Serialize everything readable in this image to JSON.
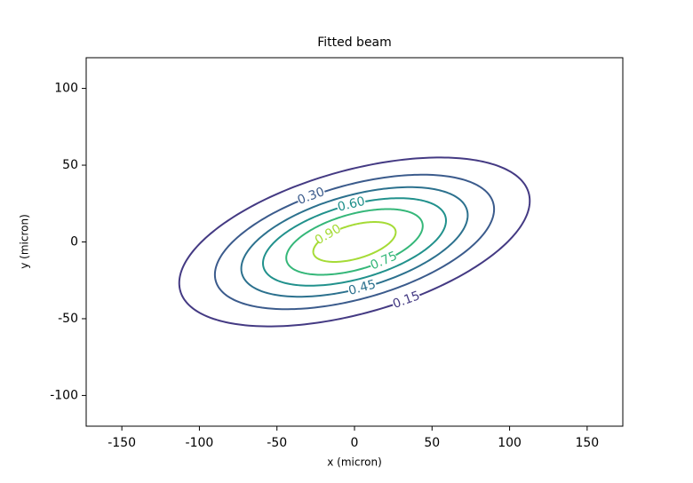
{
  "chart_data": {
    "type": "contour",
    "title": "Fitted beam",
    "x_label": "x (micron)",
    "y_label": "y (micron)",
    "xlim": [
      -173,
      173
    ],
    "xticks": [
      -150,
      -100,
      -50,
      0,
      50,
      100,
      150
    ],
    "ylim": [
      -120,
      120
    ],
    "yticks": [
      -100,
      -50,
      0,
      50,
      100
    ],
    "center": [
      0,
      0
    ],
    "correlation": 0.487,
    "series": [
      {
        "name": "0.15",
        "color": "#443a83",
        "x_half": 113,
        "y_half": 55
      },
      {
        "name": "0.30",
        "color": "#3b5b8c",
        "x_half": 90,
        "y_half": 43.8
      },
      {
        "name": "0.45",
        "color": "#2c718e",
        "x_half": 73,
        "y_half": 35.7
      },
      {
        "name": "0.60",
        "color": "#21918c",
        "x_half": 59,
        "y_half": 28.5
      },
      {
        "name": "0.75",
        "color": "#35b779",
        "x_half": 44,
        "y_half": 21.4
      },
      {
        "name": "0.90",
        "color": "#a5db36",
        "x_half": 26.6,
        "y_half": 13
      }
    ]
  }
}
